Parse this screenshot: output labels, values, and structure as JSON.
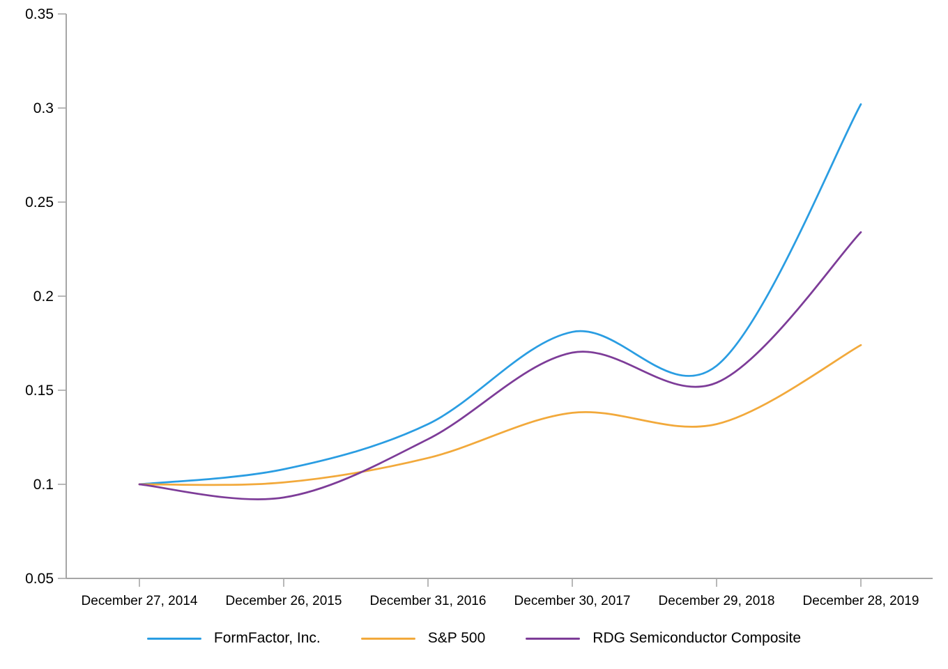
{
  "chart_data": {
    "type": "line",
    "title": "",
    "xlabel": "",
    "ylabel": "",
    "x_categories": [
      "December 27, 2014",
      "December 26, 2015",
      "December 31, 2016",
      "December 30, 2017",
      "December 29, 2018",
      "December 28, 2019"
    ],
    "series": [
      {
        "name": "FormFactor, Inc.",
        "color": "#2a9de2",
        "values": [
          0.1,
          0.108,
          0.132,
          0.181,
          0.163,
          0.302
        ]
      },
      {
        "name": "S&P 500",
        "color": "#f2a93b",
        "values": [
          0.1,
          0.101,
          0.114,
          0.138,
          0.132,
          0.174
        ]
      },
      {
        "name": "RDG Semiconductor Composite",
        "color": "#7d3c98",
        "values": [
          0.1,
          0.093,
          0.124,
          0.17,
          0.154,
          0.234
        ]
      }
    ],
    "y_ticks": [
      0.05,
      0.1,
      0.15,
      0.2,
      0.25,
      0.3,
      0.35
    ],
    "y_tick_labels": [
      "0.05",
      "0.1",
      "0.15",
      "0.2",
      "0.25",
      "0.3",
      "0.35"
    ],
    "ylim": [
      0.05,
      0.35
    ],
    "grid": false,
    "smooth": true,
    "legend_position": "bottom",
    "axis_color": "#a6a6a6",
    "text_color": "#000000"
  }
}
